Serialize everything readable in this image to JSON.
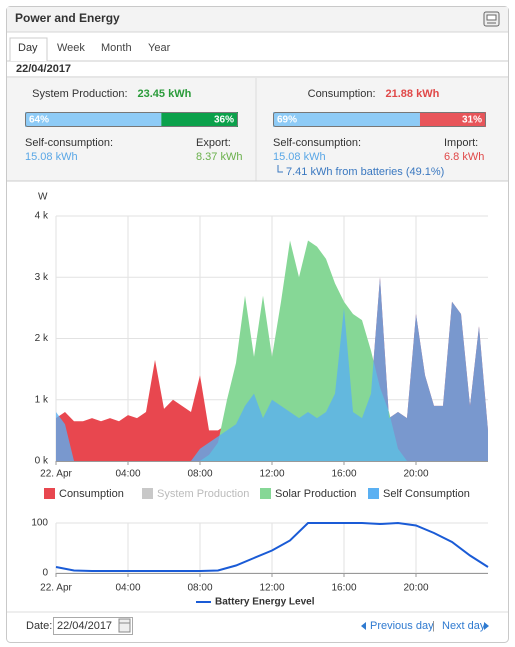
{
  "header": {
    "title": "Power and Energy"
  },
  "tabs": [
    "Day",
    "Week",
    "Month",
    "Year"
  ],
  "active_tab": 0,
  "date": "22/04/2017",
  "summary": {
    "production": {
      "label": "System Production:",
      "value": "23.45 kWh",
      "value_color": "#2a9b3a",
      "bar": [
        {
          "value": 64,
          "label": "64%",
          "color": "#8ecbf6"
        },
        {
          "value": 36,
          "label": "36%",
          "color": "#0ba14b"
        }
      ],
      "left_label": "Self-consumption:",
      "left_value": "15.08 kWh",
      "left_color": "#5aa7e6",
      "right_label": "Export:",
      "right_value": "8.37 kWh",
      "right_color": "#6ab04c"
    },
    "consumption": {
      "label": "Consumption:",
      "value": "21.88 kWh",
      "value_color": "#e04848",
      "bar": [
        {
          "value": 69,
          "label": "69%",
          "color": "#8ecbf6"
        },
        {
          "value": 31,
          "label": "31%",
          "color": "#e8555a"
        }
      ],
      "left_label": "Self-consumption:",
      "left_value": "15.08 kWh",
      "left_color": "#5aa7e6",
      "right_label": "Import:",
      "right_value": "6.8 kWh",
      "right_color": "#e04848",
      "note": "7.41 kWh from batteries (49.1%)"
    }
  },
  "chart_data": [
    {
      "type": "area",
      "y_label": "W",
      "x": [
        0,
        0.5,
        1,
        1.5,
        2,
        2.5,
        3,
        3.5,
        4,
        4.5,
        5,
        5.5,
        6,
        6.5,
        7,
        7.5,
        8,
        8.5,
        9,
        9.5,
        10,
        10.5,
        11,
        11.5,
        12,
        12.5,
        13,
        13.5,
        14,
        14.5,
        15,
        15.5,
        16,
        16.5,
        17,
        17.5,
        18,
        18.5,
        19,
        19.5,
        20,
        20.5,
        21,
        21.5,
        22,
        22.5,
        23,
        23.5,
        24
      ],
      "xlim": [
        0,
        24
      ],
      "xticks": [
        {
          "value": 0,
          "label": "22. Apr"
        },
        {
          "value": 4,
          "label": "04:00"
        },
        {
          "value": 8,
          "label": "08:00"
        },
        {
          "value": 12,
          "label": "12:00"
        },
        {
          "value": 16,
          "label": "16:00"
        },
        {
          "value": 20,
          "label": "20:00"
        }
      ],
      "ylim": [
        0,
        4000
      ],
      "yticks": [
        {
          "value": 0,
          "label": "0 k"
        },
        {
          "value": 1000,
          "label": "1 k"
        },
        {
          "value": 2000,
          "label": "2 k"
        },
        {
          "value": 3000,
          "label": "3 k"
        },
        {
          "value": 4000,
          "label": "4 k"
        }
      ],
      "grid": true,
      "series": [
        {
          "name": "Consumption",
          "color": "#e8474f",
          "values": [
            700,
            800,
            650,
            650,
            700,
            650,
            700,
            650,
            750,
            700,
            800,
            1650,
            850,
            1000,
            900,
            800,
            1400,
            500,
            500,
            600,
            700,
            900,
            1100,
            800,
            1000,
            900,
            800,
            700,
            800,
            700,
            800,
            1100,
            2500,
            800,
            700,
            1100,
            3000,
            700,
            800,
            700,
            2400,
            1400,
            900,
            900,
            2600,
            2400,
            900,
            2200,
            500
          ]
        },
        {
          "name": "System Production",
          "color": "#c8c8c8",
          "hidden": true
        },
        {
          "name": "Solar Production",
          "color": "#86d796",
          "values": [
            0,
            0,
            0,
            0,
            0,
            0,
            0,
            0,
            0,
            0,
            0,
            0,
            0,
            0,
            0,
            0,
            0,
            100,
            300,
            1000,
            1600,
            2700,
            1700,
            2700,
            1700,
            2600,
            3600,
            3000,
            3600,
            3500,
            3300,
            2900,
            2600,
            2400,
            2300,
            1800,
            1200,
            800,
            200,
            0,
            0,
            0,
            0,
            0,
            0,
            0,
            0,
            0,
            0
          ]
        },
        {
          "name": "Self Consumption",
          "color": "#5ab0f2",
          "values": [
            800,
            600,
            0,
            0,
            0,
            0,
            0,
            0,
            0,
            0,
            0,
            0,
            0,
            0,
            0,
            0,
            200,
            300,
            400,
            500,
            600,
            900,
            1100,
            700,
            1000,
            900,
            800,
            700,
            800,
            700,
            800,
            1100,
            2500,
            800,
            700,
            1100,
            3000,
            700,
            800,
            700,
            2400,
            1400,
            900,
            900,
            2600,
            2400,
            900,
            2200,
            500
          ]
        }
      ]
    },
    {
      "type": "line",
      "x": [
        0,
        1,
        2,
        3,
        4,
        5,
        6,
        7,
        8,
        9,
        10,
        11,
        12,
        13,
        14,
        15,
        16,
        17,
        18,
        19,
        20,
        21,
        22,
        23,
        24
      ],
      "xlim": [
        0,
        24
      ],
      "xticks": [
        {
          "value": 0,
          "label": "22. Apr"
        },
        {
          "value": 4,
          "label": "04:00"
        },
        {
          "value": 8,
          "label": "08:00"
        },
        {
          "value": 12,
          "label": "12:00"
        },
        {
          "value": 16,
          "label": "16:00"
        },
        {
          "value": 20,
          "label": "20:00"
        }
      ],
      "ylim": [
        0,
        100
      ],
      "yticks": [
        0,
        100
      ],
      "grid": true,
      "series": [
        {
          "name": "Battery Energy Level",
          "color": "#1a5bd6",
          "values": [
            12,
            5,
            4,
            4,
            4,
            4,
            4,
            4,
            4,
            5,
            15,
            30,
            45,
            65,
            100,
            100,
            100,
            100,
            98,
            100,
            95,
            80,
            62,
            35,
            12
          ]
        }
      ]
    }
  ],
  "footer": {
    "date_label": "Date:",
    "date_value": "22/04/2017",
    "previous": "Previous day",
    "separator": "|",
    "next": "Next day"
  }
}
